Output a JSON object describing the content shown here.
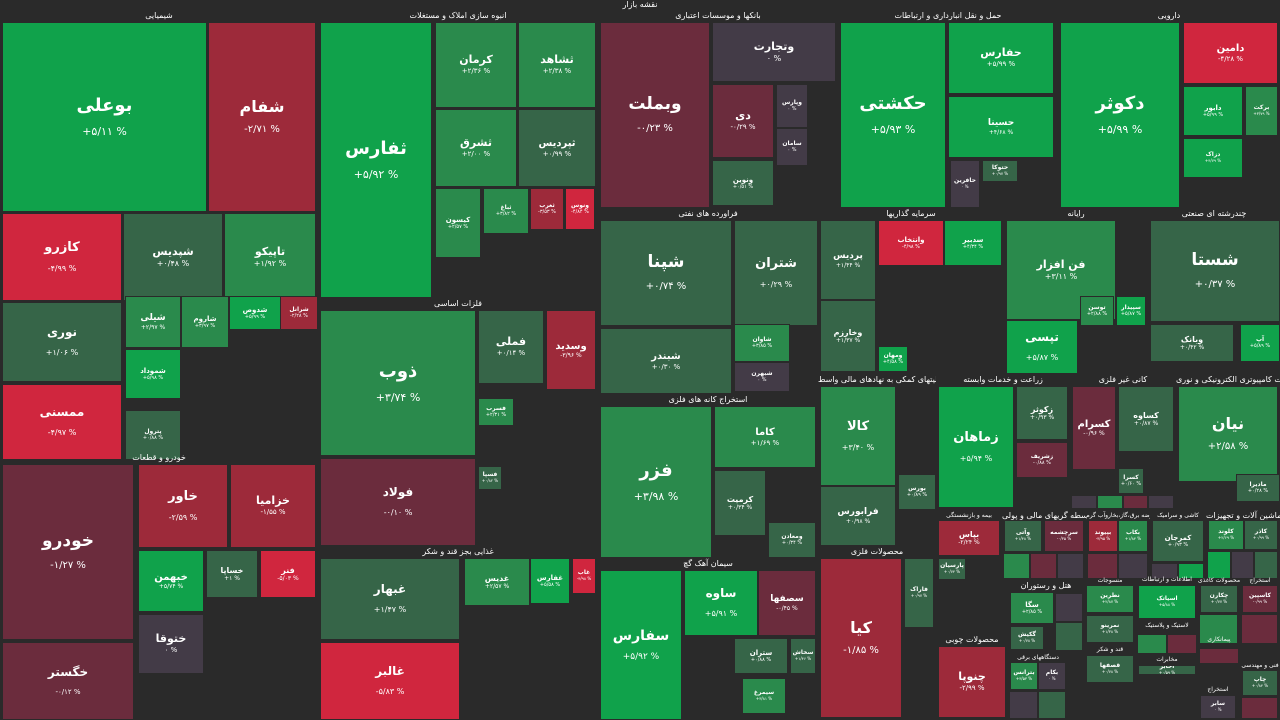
{
  "header": {
    "title": "نقشه بازار"
  },
  "colors": {
    "strong_up": "#10a24b",
    "up": "#2a8a4c",
    "mild_up": "#366548",
    "neutral": "#433b47",
    "mild_down": "#6b2c3d",
    "down": "#9d2a3a",
    "strong_down": "#d0263e"
  },
  "chart_data": {
    "type": "treemap",
    "sectors": [
      {
        "name": "شیمیایی",
        "tiles": [
          {
            "symbol": "بوعلی",
            "change": "+۵/۱۱ %"
          },
          {
            "symbol": "شفام",
            "change": "-۲/۷۱ %"
          },
          {
            "symbol": "کازرو",
            "change": "-۴/۹۹ %"
          },
          {
            "symbol": "شپدیس",
            "change": "+۰/۴۸ %"
          },
          {
            "symbol": "تاپیکو",
            "change": "+۱/۹۲ %"
          },
          {
            "symbol": "نوری",
            "change": "+۱/۰۶ %"
          },
          {
            "symbol": "شیلی",
            "change": "+۲/۹۷ %"
          },
          {
            "symbol": "شاروم",
            "change": "+۳/۹۷ %"
          },
          {
            "symbol": "شدوص",
            "change": "+۵/۹۹ %"
          },
          {
            "symbol": "شرانل",
            "change": "-۲/۲۸ %"
          },
          {
            "symbol": "ممسنی",
            "change": "-۴/۹۷ %"
          },
          {
            "symbol": "شموداد",
            "change": "+۵/۹۸ %"
          },
          {
            "symbol": "پترول",
            "change": "+۰/۸۸ %"
          }
        ]
      },
      {
        "name": "انبوه سازی املاک و مستغلات",
        "tiles": [
          {
            "symbol": "ثفارس",
            "change": "+۵/۹۲ %"
          },
          {
            "symbol": "کرمان",
            "change": "+۲/۳۶ %"
          },
          {
            "symbol": "ثشاهد",
            "change": "+۲/۳۸ %"
          },
          {
            "symbol": "ثشرق",
            "change": "+۲/۰۰ %"
          },
          {
            "symbol": "ثپردیس",
            "change": "+۰/۹۹ %"
          },
          {
            "symbol": "کیسون",
            "change": "+۲/۵۷ %"
          },
          {
            "symbol": "ثباغ",
            "change": "+۳/۸۲ %"
          },
          {
            "symbol": "ثغرب",
            "change": "-۳/۵۳ %"
          },
          {
            "symbol": "ونوس",
            "change": "-۴/۸۴ %"
          }
        ]
      },
      {
        "name": "بانکها و موسسات اعتباری",
        "tiles": [
          {
            "symbol": "وبملت",
            "change": "-۰/۲۳ %"
          },
          {
            "symbol": "وتجارت",
            "change": "۰ %"
          },
          {
            "symbol": "دی",
            "change": "-۰/۲۹ %"
          },
          {
            "symbol": "وپارس",
            "change": "۰ %"
          },
          {
            "symbol": "ونوین",
            "change": "+۰/۵۱ %"
          },
          {
            "symbol": "سامان",
            "change": "۰ %"
          }
        ]
      },
      {
        "name": "حمل و نقل انبارداری و ارتباطات",
        "tiles": [
          {
            "symbol": "حکشتی",
            "change": "+۵/۹۳ %"
          },
          {
            "symbol": "حفارس",
            "change": "+۵/۹۹ %"
          },
          {
            "symbol": "حسینا",
            "change": "+۴/۶۸ %"
          },
          {
            "symbol": "حتوکا",
            "change": "+۰/۹۷ %"
          },
          {
            "symbol": "حافرین",
            "change": "۰ %"
          }
        ]
      },
      {
        "name": "دارویی",
        "tiles": [
          {
            "symbol": "دکوثر",
            "change": "+۵/۹۹ %"
          },
          {
            "symbol": "دامین",
            "change": "-۴/۲۸ %"
          },
          {
            "symbol": "دابور",
            "change": "+۵/۹۹ %"
          },
          {
            "symbol": "برکت",
            "change": "+۳/۷۹ %"
          },
          {
            "symbol": "دزاک",
            "change": "+۴/۷۹ %"
          }
        ]
      },
      {
        "name": "فراورده های نفتی",
        "tiles": [
          {
            "symbol": "شپنا",
            "change": "+۰/۷۴ %"
          },
          {
            "symbol": "شتران",
            "change": "+۰/۲۹ %"
          },
          {
            "symbol": "شبندر",
            "change": "+۰/۳۰ %"
          },
          {
            "symbol": "شاوان",
            "change": "+۳/۸۵ %"
          },
          {
            "symbol": "شبهرن",
            "change": "۰ %"
          }
        ]
      },
      {
        "name": "سرمایه گذاریها",
        "tiles": [
          {
            "symbol": "پردیس",
            "change": "+۱/۴۴ %"
          },
          {
            "symbol": "وانتخاب",
            "change": "-۴/۹۸ %"
          },
          {
            "symbol": "سدبیر",
            "change": "+۴/۳۴ %"
          },
          {
            "symbol": "وخارزم",
            "change": "+۱/۳۷ %"
          },
          {
            "symbol": "ومهان",
            "change": "+۴/۵۸ %"
          }
        ]
      },
      {
        "name": "رایانه",
        "tiles": [
          {
            "symbol": "فن افزار",
            "change": "+۳/۱۱ %"
          },
          {
            "symbol": "تپسی",
            "change": "+۵/۸۷ %"
          },
          {
            "symbol": "توسن",
            "change": "+۲/۸۸ %"
          },
          {
            "symbol": "سپیدار",
            "change": "+۵/۸۷ %"
          }
        ]
      },
      {
        "name": "چندرشته ای صنعتی",
        "tiles": [
          {
            "symbol": "شستا",
            "change": "+۰/۳۷ %"
          },
          {
            "symbol": "وبانک",
            "change": "+۰/۴۲ %"
          },
          {
            "symbol": "آپ",
            "change": "+۵/۸۹ %"
          }
        ]
      },
      {
        "name": "فلزات اساسی",
        "tiles": [
          {
            "symbol": "ذوب",
            "change": "+۳/۷۴ %"
          },
          {
            "symbol": "فملی",
            "change": "+۰/۱۴ %"
          },
          {
            "symbol": "وسدید",
            "change": "-۳/۹۶ %"
          },
          {
            "symbol": "فولاد",
            "change": "-۰/۱۰ %"
          },
          {
            "symbol": "فسرب",
            "change": "+۲/۳۱ %"
          },
          {
            "symbol": "فسپا",
            "change": "+۰/۸۲ %"
          }
        ]
      },
      {
        "name": "استخراج کانه های فلزی",
        "tiles": [
          {
            "symbol": "فزر",
            "change": "+۳/۹۸ %"
          },
          {
            "symbol": "کاما",
            "change": "+۱/۶۹ %"
          },
          {
            "symbol": "کرمیت",
            "change": "+۰/۳۴ %"
          },
          {
            "symbol": "ومعادن",
            "change": "+۰/۳۴ %"
          }
        ]
      },
      {
        "name": "فعالیتهای کمکی به نهادهای مالی واسط",
        "tiles": [
          {
            "symbol": "کالا",
            "change": "+۳/۴۰ %"
          },
          {
            "symbol": "فرابورس",
            "change": "+۰/۹۸ %"
          },
          {
            "symbol": "بورس",
            "change": "+۰/۸۹ %"
          }
        ]
      },
      {
        "name": "زراعت و خدمات وابسته",
        "tiles": [
          {
            "symbol": "زماهان",
            "change": "+۵/۹۴ %"
          },
          {
            "symbol": "زکوثر",
            "change": "+۰/۹۳ %"
          },
          {
            "symbol": "زشریف",
            "change": "-۰/۸۸ %"
          }
        ]
      },
      {
        "name": "کانی غیر فلزی",
        "tiles": [
          {
            "symbol": "کسرام",
            "change": "-۰/۹۶ %"
          },
          {
            "symbol": "کساوه",
            "change": "+۰/۸۷ %"
          },
          {
            "symbol": "کسرا",
            "change": "+۰/۶۰ %"
          }
        ]
      },
      {
        "name": "محصولات کامپیوتری الکترونیکی و نوری",
        "tiles": [
          {
            "symbol": "نیان",
            "change": "+۲/۵۸ %"
          },
          {
            "symbol": "مادیرا",
            "change": "+۰/۲۸ %"
          }
        ]
      },
      {
        "name": "خودرو و قطعات",
        "tiles": [
          {
            "symbol": "خودرو",
            "change": "-۱/۲۷ %"
          },
          {
            "symbol": "خاور",
            "change": "-۲/۵۹ %"
          },
          {
            "symbol": "خزامیا",
            "change": "-۱/۵۵ %"
          },
          {
            "symbol": "خبهمن",
            "change": "+۵/۷۴ %"
          },
          {
            "symbol": "خساپا",
            "change": "+۱ %"
          },
          {
            "symbol": "فنر",
            "change": "-۵/۰۳ %"
          },
          {
            "symbol": "ختوقا",
            "change": "۰ %"
          },
          {
            "symbol": "خگستر",
            "change": "-۰/۱۲ %"
          }
        ]
      },
      {
        "name": "غذایی بجز قند و شکر",
        "tiles": [
          {
            "symbol": "غبهار",
            "change": "+۱/۴۷ %"
          },
          {
            "symbol": "غالبر",
            "change": "-۵/۸۳ %"
          },
          {
            "symbol": "غدیس",
            "change": "+۲/۵۷ %"
          },
          {
            "symbol": "غفارس",
            "change": "+۵/۵۸ %"
          },
          {
            "symbol": "غاب",
            "change": "-۴/۹۸ %"
          }
        ]
      },
      {
        "name": "سیمان آهک گچ",
        "tiles": [
          {
            "symbol": "سفارس",
            "change": "+۵/۹۲ %"
          },
          {
            "symbol": "ساوه",
            "change": "+۵/۹۱ %"
          },
          {
            "symbol": "سصفها",
            "change": "-۰/۴۵ %"
          },
          {
            "symbol": "ستران",
            "change": "+۰/۸۸ %"
          },
          {
            "symbol": "سیمرغ",
            "change": "+۳/۸۱ %"
          },
          {
            "symbol": "سخاش",
            "change": "+۱/۴۶ %"
          }
        ]
      },
      {
        "name": "محصولات فلزی",
        "tiles": [
          {
            "symbol": "کیا",
            "change": "-۱/۸۵ %"
          },
          {
            "symbol": "فاراک",
            "change": "+۰/۹۷ %"
          }
        ]
      },
      {
        "name": "محصولات چوبی",
        "tiles": [
          {
            "symbol": "چنوپا",
            "change": "-۲/۹۹ %"
          }
        ]
      },
      {
        "name": "بیمه و بازنشستگی",
        "tiles": [
          {
            "symbol": "بپاس",
            "change": "-۲/۲۴ %"
          },
          {
            "symbol": "پارسیان",
            "change": "+۰/۷۴ %"
          }
        ]
      },
      {
        "name": "واسطه گریهای مالی و پولی",
        "tiles": [
          {
            "symbol": "وآتی",
            "change": "+۱/۴۸ %"
          },
          {
            "symbol": "سرچشمه",
            "change": "-۰/۳۵ %"
          }
        ]
      },
      {
        "name": "عرضه برق،گاز،بخاروآب گرم",
        "tiles": [
          {
            "symbol": "بپیوند",
            "change": "-۳/۹۵ %"
          },
          {
            "symbol": "بکاب",
            "change": "+۱/۸۴ %"
          }
        ]
      },
      {
        "name": "کاشی و سرامیک",
        "tiles": [
          {
            "symbol": "کمرجان",
            "change": "+۰/۹۳ %"
          }
        ]
      },
      {
        "name": "ماشین آلات و تجهیزات",
        "tiles": [
          {
            "symbol": "کلوند",
            "change": "+۲/۶۹ %"
          },
          {
            "symbol": "کاذر",
            "change": "+۰/۹۹ %"
          }
        ]
      },
      {
        "name": "هتل و رستوران",
        "tiles": [
          {
            "symbol": "سگا",
            "change": "+۲/۸۵ %"
          },
          {
            "symbol": "گکیش",
            "change": "+۰/۷۸ %"
          }
        ]
      },
      {
        "name": "منسوجات",
        "tiles": [
          {
            "symbol": "نطرین",
            "change": "+۲/۸۷ %"
          },
          {
            "symbol": "نمرینو",
            "change": "+۱/۳۸ %"
          }
        ]
      },
      {
        "name": "اطلاعات و ارتباطات",
        "tiles": [
          {
            "symbol": "اسیاتک",
            "change": "+۵/۸۸ %"
          }
        ]
      },
      {
        "name": "محصولات کاغذی",
        "tiles": [
          {
            "symbol": "چکارن",
            "change": "+۰/۷۷ %"
          }
        ]
      },
      {
        "name": "استخراج",
        "tiles": [
          {
            "symbol": "کاسپین",
            "change": "-۰/۹۹ %"
          }
        ]
      },
      {
        "name": "لاستیک و پلاستیک",
        "tiles": []
      },
      {
        "name": "پیمانکاری",
        "tiles": []
      },
      {
        "name": "دستگاههای برقی",
        "tiles": [
          {
            "symbol": "بترانس",
            "change": "+۳/۵۳ %"
          },
          {
            "symbol": "بکام",
            "change": "۰ %"
          }
        ]
      },
      {
        "name": "قند و شکر",
        "tiles": [
          {
            "symbol": "قصفها",
            "change": "+۰/۷۸ %"
          }
        ]
      },
      {
        "name": "مخابرات",
        "tiles": [
          {
            "symbol": "اخابر",
            "change": "+۰/۵۹ %"
          }
        ]
      },
      {
        "name": "استخراج",
        "tiles": [
          {
            "symbol": "سابر",
            "change": "۰ %"
          }
        ]
      },
      {
        "name": "فنی و مهندسی",
        "tiles": [
          {
            "symbol": "چاپ",
            "change": "+۰/۸۴ %"
          }
        ]
      }
    ]
  }
}
